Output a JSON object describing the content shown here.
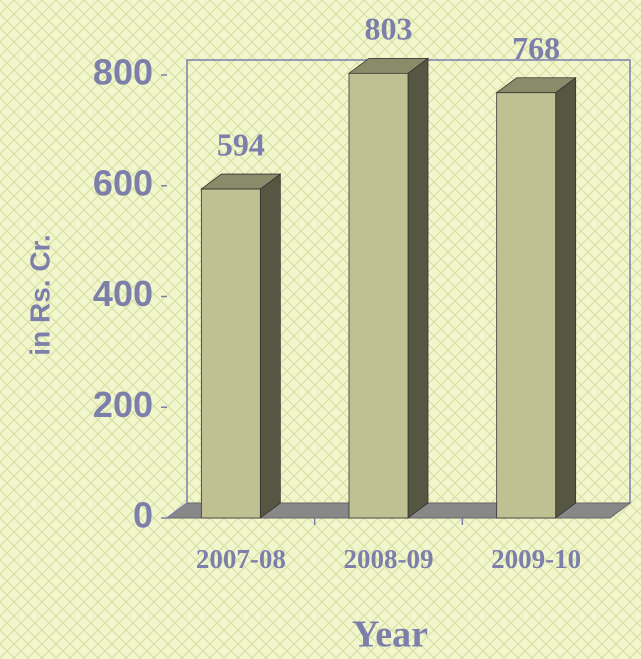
{
  "chart_data": {
    "type": "bar",
    "categories": [
      "2007-08",
      "2008-09",
      "2009-10"
    ],
    "values": [
      594,
      803,
      768
    ],
    "color": "#c0c192",
    "ylim": [
      0,
      800
    ],
    "yticks": [
      0,
      200,
      400,
      600,
      800
    ],
    "y_label": "in Rs. Cr.",
    "x_label": "Year",
    "grid": false
  }
}
